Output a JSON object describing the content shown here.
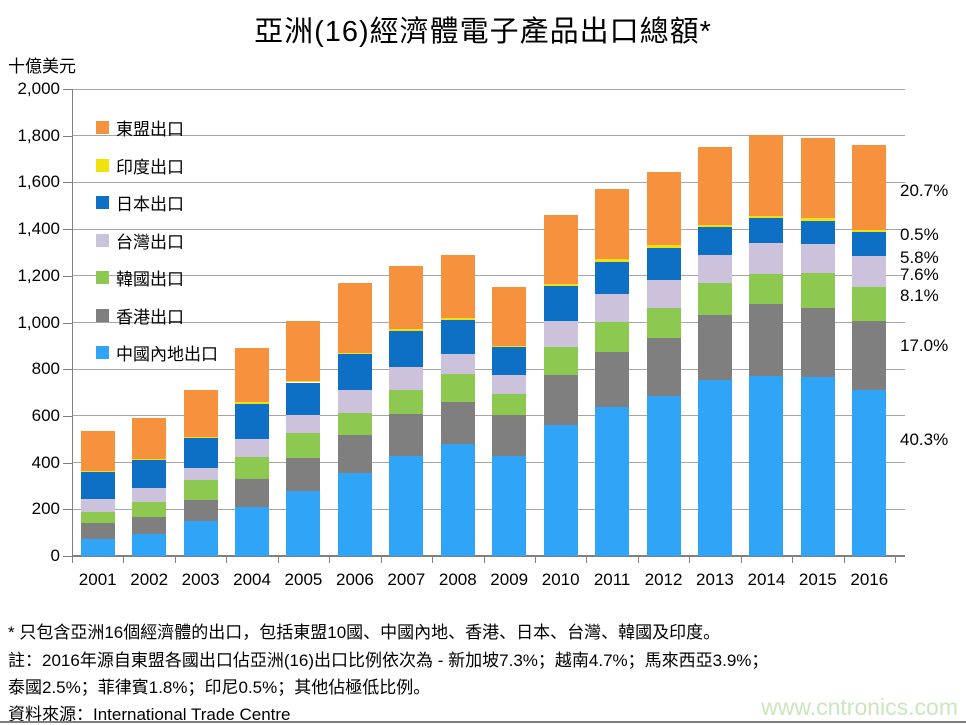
{
  "page": {
    "title": "亞洲(16)經濟體電子產品出口總額*",
    "unit_label": "十億美元",
    "footnote_line1": "* 只包含亞洲16個經濟體的出口，包括東盟10國、中國內地、香港、日本、台灣、韓國及印度。",
    "footnote_line2": "註：2016年源自東盟各國出口佔亞洲(16)出口比例依次為 - 新加坡7.3%；越南4.7%；馬來西亞3.9%；",
    "footnote_line3": "泰國2.5%；菲律賓1.8%；印尼0.5%；其他佔極低比例。",
    "source_line": "資料來源：International Trade Centre",
    "watermark": "www.cntronics.com"
  },
  "chart_data": {
    "type": "bar",
    "stacked": true,
    "title": "亞洲(16)經濟體電子產品出口總額*",
    "ylabel": "十億美元",
    "ylim": [
      0,
      2000
    ],
    "ytick_step": 200,
    "grid": true,
    "legend_position": "upper-left-inside",
    "categories": [
      "2001",
      "2002",
      "2003",
      "2004",
      "2005",
      "2006",
      "2007",
      "2008",
      "2009",
      "2010",
      "2011",
      "2012",
      "2013",
      "2014",
      "2015",
      "2016"
    ],
    "series_bottom_to_top": [
      {
        "name": "中國內地出口",
        "color": "#30A5F7",
        "pct_2016": "40.3%",
        "values": [
          73,
          93,
          148,
          209,
          277,
          356,
          427,
          480,
          430,
          559,
          638,
          685,
          755,
          771,
          767,
          709
        ]
      },
      {
        "name": "香港出口",
        "color": "#7F7F7F",
        "pct_2016": "17.0%",
        "values": [
          68,
          76,
          93,
          122,
          143,
          161,
          179,
          179,
          172,
          215,
          234,
          248,
          277,
          308,
          295,
          299
        ]
      },
      {
        "name": "韓國出口",
        "color": "#8DC950",
        "pct_2016": "8.1%",
        "values": [
          47,
          62,
          83,
          92,
          108,
          96,
          103,
          122,
          90,
          119,
          129,
          128,
          136,
          129,
          150,
          143
        ]
      },
      {
        "name": "台灣出口",
        "color": "#CCC2DC",
        "pct_2016": "7.6%",
        "values": [
          57,
          60,
          53,
          76,
          76,
          100,
          100,
          86,
          82,
          114,
          122,
          119,
          119,
          132,
          125,
          134
        ]
      },
      {
        "name": "日本出口",
        "color": "#0D70C5",
        "pct_2016": "5.8%",
        "values": [
          118,
          122,
          129,
          154,
          139,
          153,
          155,
          145,
          119,
          150,
          138,
          141,
          120,
          106,
          99,
          102
        ]
      },
      {
        "name": "印度出口",
        "color": "#F0E30C",
        "pct_2016": "0.5%",
        "values": [
          2,
          4,
          4,
          5,
          5,
          4,
          8,
          8,
          8,
          8,
          9,
          9,
          11,
          10,
          10,
          9
        ]
      },
      {
        "name": "東盟出口",
        "color": "#F6913E",
        "pct_2016": "20.7%",
        "values": [
          170,
          174,
          200,
          231,
          260,
          298,
          270,
          270,
          250,
          296,
          300,
          313,
          335,
          347,
          343,
          364
        ]
      }
    ],
    "totals": [
      535,
      591,
      710,
      889,
      1008,
      1168,
      1242,
      1290,
      1151,
      1461,
      1570,
      1643,
      1753,
      1803,
      1789,
      1760
    ],
    "legend_top_to_bottom": [
      "東盟出口",
      "印度出口",
      "日本出口",
      "台灣出口",
      "韓國出口",
      "香港出口",
      "中國內地出口"
    ],
    "right_labels_top_to_bottom": [
      "20.7%",
      "0.5%",
      "5.8%",
      "7.6%",
      "8.1%",
      "17.0%",
      "40.3%"
    ]
  }
}
